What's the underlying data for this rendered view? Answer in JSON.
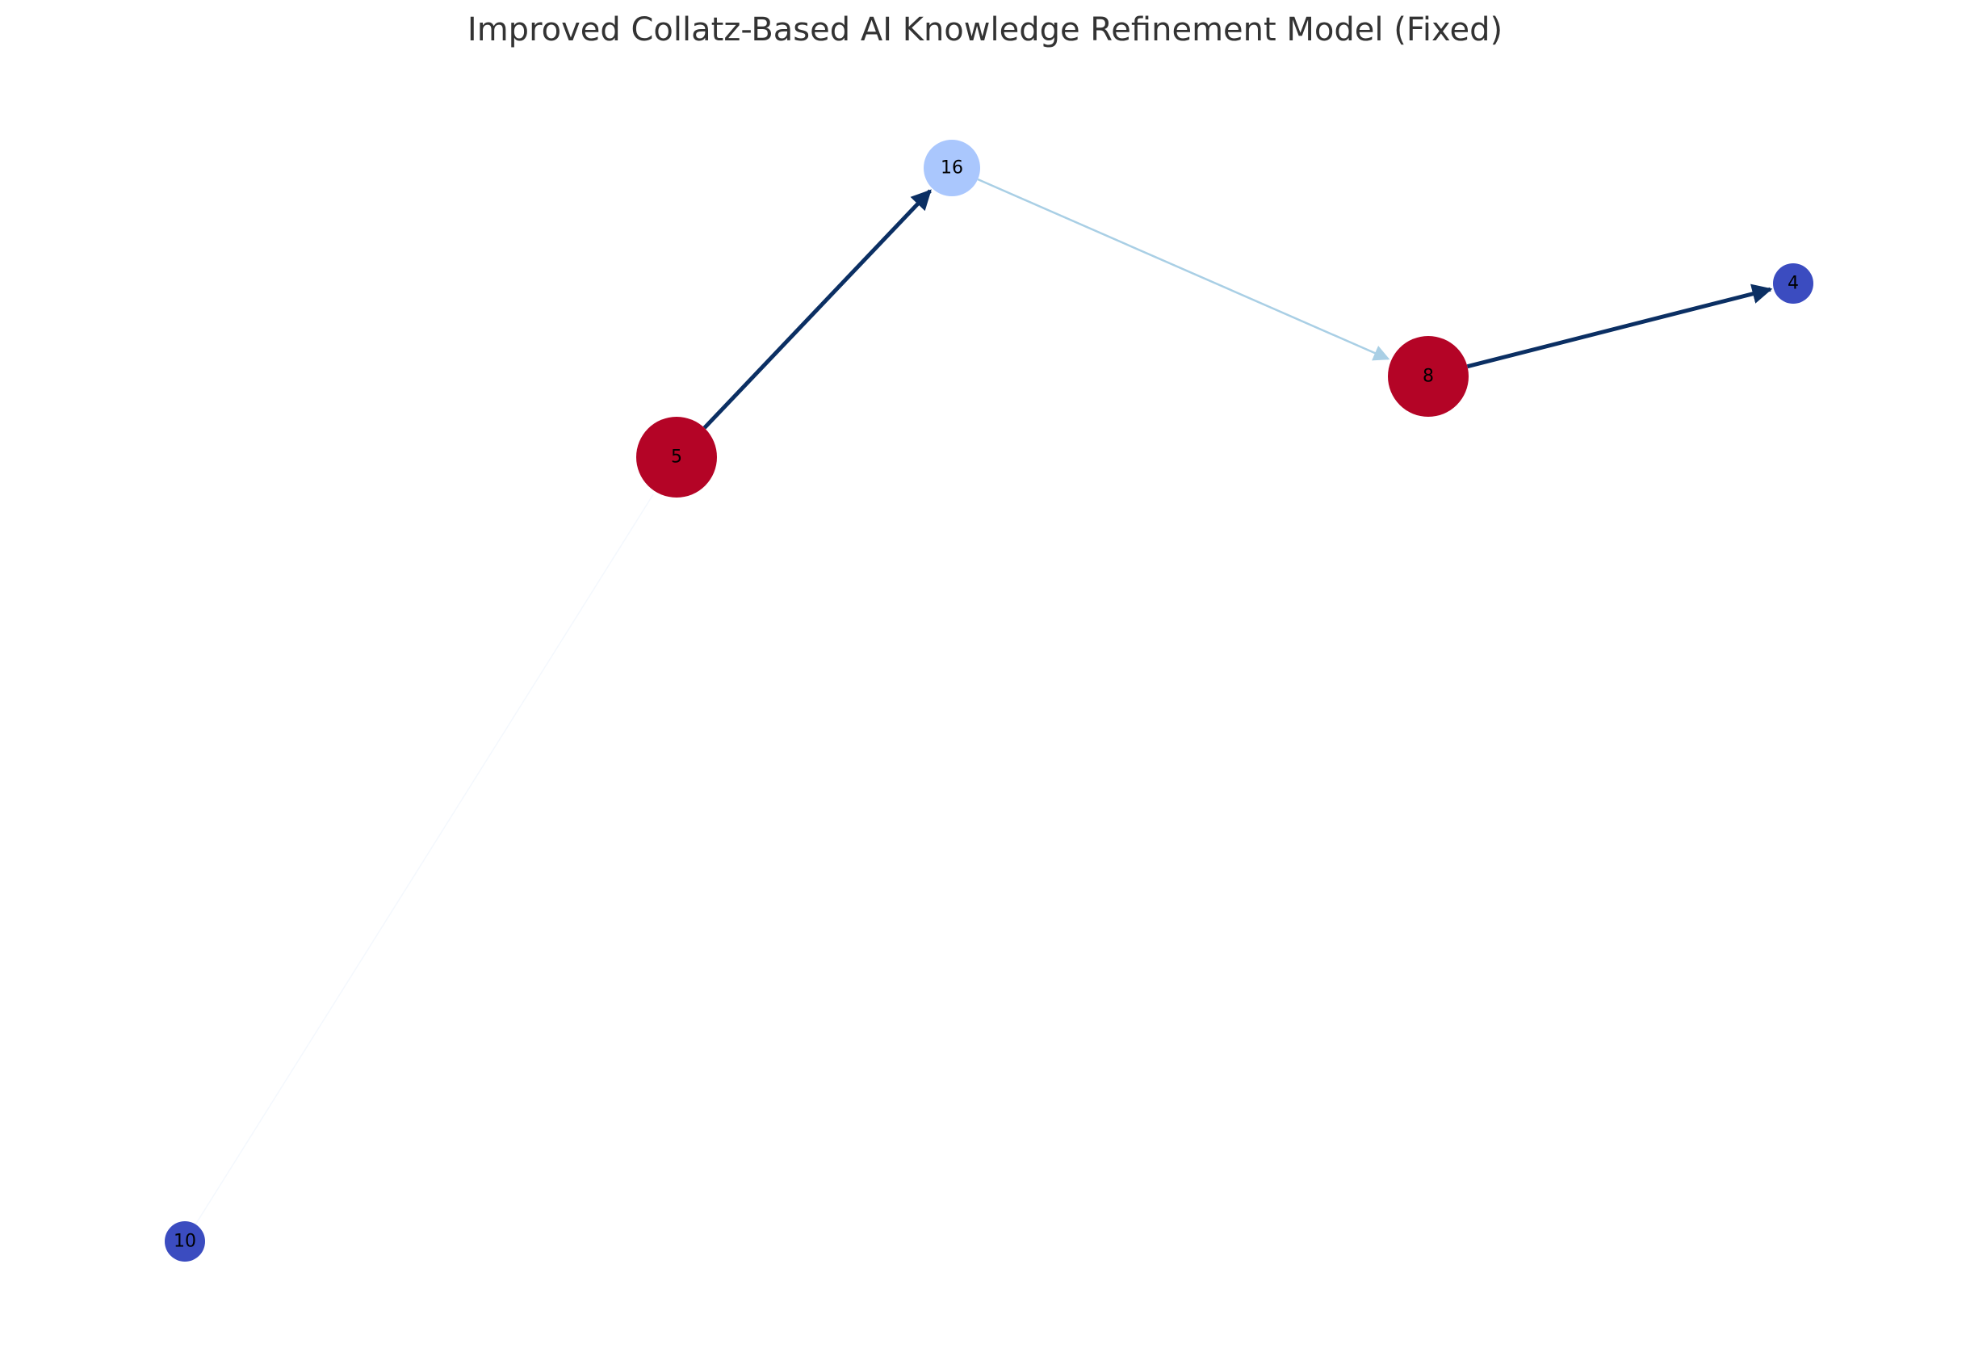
{
  "title": "Improved Collatz-Based AI Knowledge Refinement Model (Fixed)",
  "nodes": [
    {
      "id": "10",
      "label": "10",
      "color": "#3b4cc0"
    },
    {
      "id": "5",
      "label": "5",
      "color": "#b40426"
    },
    {
      "id": "16",
      "label": "16",
      "color": "#aac7fd"
    },
    {
      "id": "8",
      "label": "8",
      "color": "#b40426"
    },
    {
      "id": "4",
      "label": "4",
      "color": "#3b4cc0"
    }
  ],
  "edges": [
    {
      "from": "10",
      "to": "5",
      "color": "#f4f8fd"
    },
    {
      "from": "5",
      "to": "16",
      "color": "#0b2f63"
    },
    {
      "from": "16",
      "to": "8",
      "color": "#a9cfe5"
    },
    {
      "from": "8",
      "to": "4",
      "color": "#0b2f63"
    }
  ]
}
